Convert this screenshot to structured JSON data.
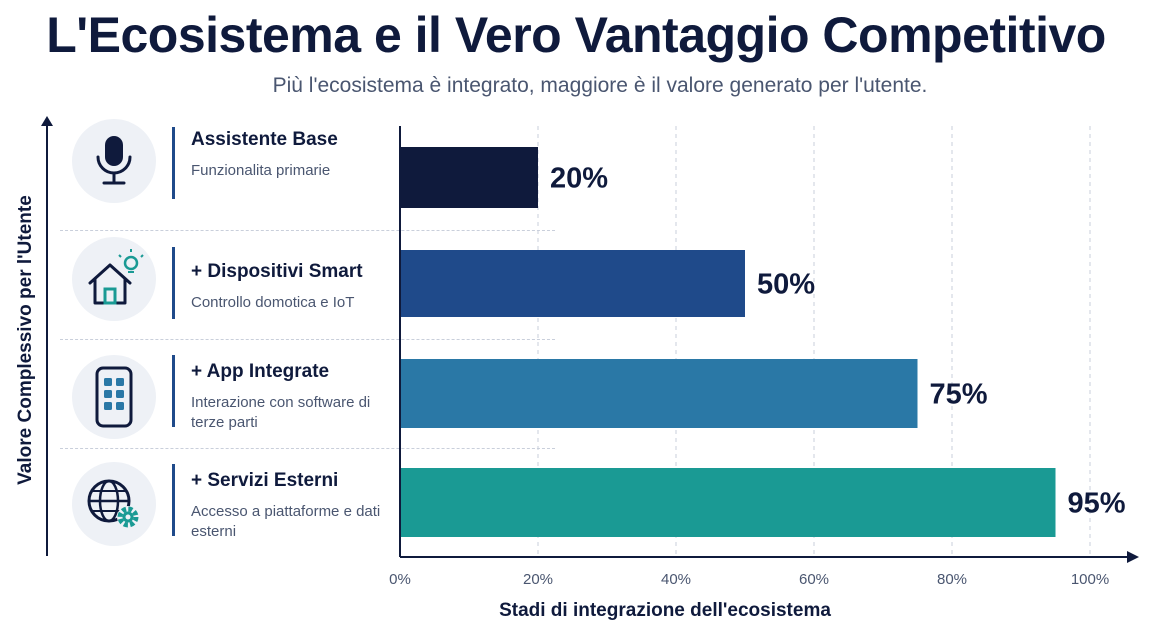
{
  "title": "L'Ecosistema e il Vero Vantaggio Competitivo",
  "subtitle": "Più l'ecosistema è integrato, maggiore è il valore generato per l'utente.",
  "stages": [
    {
      "name": "Assistente Base",
      "desc": "Funzionalita primarie",
      "icon": "microphone-icon"
    },
    {
      "name": "+ Dispositivi Smart",
      "desc": "Controllo domotica e IoT",
      "icon": "smart-home-icon"
    },
    {
      "name": "+ App Integrate",
      "desc": "Interazione con software di terze parti",
      "icon": "smartphone-apps-icon"
    },
    {
      "name": "+ Servizi Esterni",
      "desc": "Accesso a piattaforme e dati esterni",
      "icon": "globe-gear-icon"
    }
  ],
  "colors": {
    "text": "#0f1a3c",
    "bars": [
      "#0f1a3c",
      "#1f4a8a",
      "#2a78a6",
      "#1a9a94"
    ],
    "grid": "#c9cfdb",
    "icon_accent": "#1a9a94"
  },
  "chart_data": {
    "type": "bar",
    "orientation": "horizontal",
    "title": "L'Ecosistema e il Vero Vantaggio Competitivo",
    "subtitle": "Più l'ecosistema è integrato, maggiore è il valore generato per l'utente.",
    "xlabel": "Stadi di integrazione dell'ecosistema",
    "ylabel": "Valore Complessivo per l'Utente",
    "categories": [
      "Assistente Base",
      "+ Dispositivi Smart",
      "+ App Integrate",
      "+ Servizi Esterni"
    ],
    "values": [
      20,
      50,
      75,
      95
    ],
    "value_labels": [
      "20%",
      "50%",
      "75%",
      "95%"
    ],
    "xlim": [
      0,
      100
    ],
    "xticks": [
      0,
      20,
      40,
      60,
      80,
      100
    ],
    "xtick_labels": [
      "0%",
      "20%",
      "40%",
      "60%",
      "80%",
      "100%"
    ],
    "grid": true
  }
}
